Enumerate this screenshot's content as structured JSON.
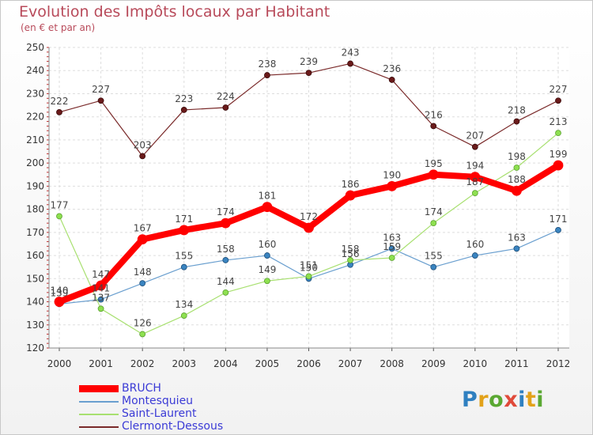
{
  "chart_data": {
    "type": "line",
    "title": "Evolution des Impôts locaux par Habitant",
    "subtitle": "(en € et par an)",
    "xlabel": "",
    "ylabel": "",
    "x": [
      "2000",
      "2001",
      "2002",
      "2003",
      "2004",
      "2005",
      "2006",
      "2007",
      "2008",
      "2009",
      "2010",
      "2011",
      "2012"
    ],
    "ylim": [
      120,
      250
    ],
    "yticks": [
      120,
      130,
      140,
      150,
      160,
      170,
      180,
      190,
      200,
      210,
      220,
      230,
      240,
      250
    ],
    "grid": true,
    "legend_position": "bottom-left",
    "series": [
      {
        "name": "BRUCH",
        "color": "#ff0000",
        "values": [
          140,
          147,
          167,
          171,
          174,
          181,
          172,
          186,
          190,
          195,
          194,
          188,
          199
        ]
      },
      {
        "name": "Montesquieu",
        "color": "#6a9fcf",
        "values": [
          139,
          141,
          148,
          155,
          158,
          160,
          150,
          156,
          163,
          155,
          160,
          163,
          171
        ]
      },
      {
        "name": "Saint-Laurent",
        "color": "#a8e070",
        "values": [
          177,
          137,
          126,
          134,
          144,
          149,
          151,
          158,
          159,
          174,
          187,
          198,
          213
        ]
      },
      {
        "name": "Clermont-Dessous",
        "color": "#7a2a2a",
        "values": [
          222,
          227,
          203,
          223,
          224,
          238,
          239,
          243,
          236,
          216,
          207,
          218,
          227
        ]
      }
    ]
  },
  "logo_text": [
    "P",
    "r",
    "o",
    "x",
    "i",
    "t",
    "i"
  ]
}
